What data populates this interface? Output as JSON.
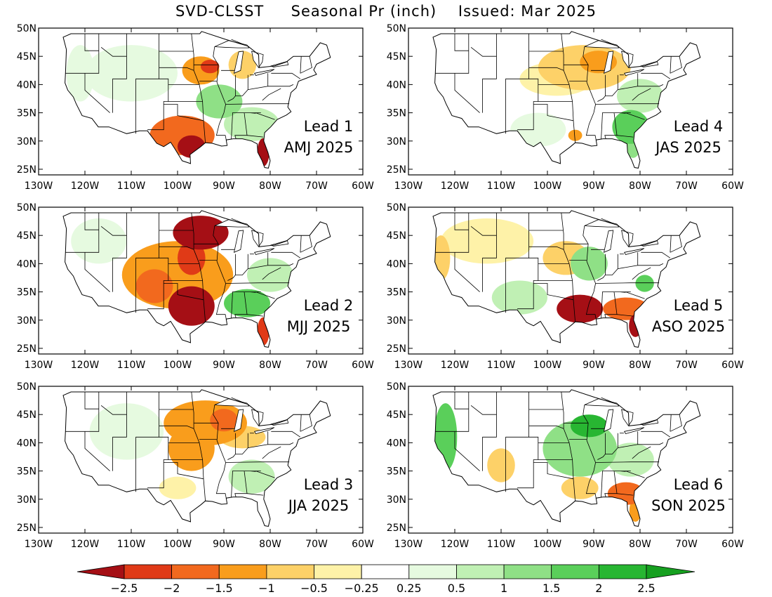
{
  "title": {
    "model": "SVD-CLSST",
    "variable": "Seasonal Pr (inch)",
    "issued": "Issued: Mar 2025"
  },
  "axes": {
    "lat_labels": [
      "50N",
      "45N",
      "40N",
      "35N",
      "30N",
      "25N"
    ],
    "lon_labels": [
      "130W",
      "120W",
      "110W",
      "100W",
      "90W",
      "80W",
      "70W",
      "60W"
    ],
    "lat_range": [
      24,
      50
    ],
    "lon_range": [
      -130,
      -60
    ]
  },
  "panels": [
    {
      "lead": "Lead 1",
      "season": "AMJ 2025",
      "blobs": [
        {
          "lon": -95,
          "lat": 42.5,
          "rx": 4,
          "ry": 2.5,
          "v": -1.2
        },
        {
          "lon": -93,
          "lat": 43.2,
          "rx": 2,
          "ry": 1.2,
          "v": -2.3
        },
        {
          "lon": -86,
          "lat": 43.5,
          "rx": 3,
          "ry": 2.5,
          "v": -1
        },
        {
          "lon": -99,
          "lat": 31,
          "rx": 7,
          "ry": 3.5,
          "v": -1.6
        },
        {
          "lon": -97,
          "lat": 29,
          "rx": 3,
          "ry": 2,
          "v": -2.6
        },
        {
          "lon": -81.5,
          "lat": 28,
          "rx": 1.3,
          "ry": 2.5,
          "v": -2.6
        },
        {
          "lon": -91,
          "lat": 37,
          "rx": 5,
          "ry": 3,
          "v": 1.2
        },
        {
          "lon": -84,
          "lat": 33,
          "rx": 6,
          "ry": 3,
          "v": 0.8
        },
        {
          "lon": -110,
          "lat": 42,
          "rx": 10,
          "ry": 5,
          "v": 0.4
        },
        {
          "lon": -121,
          "lat": 42,
          "rx": 3,
          "ry": 5,
          "v": 0.3
        }
      ]
    },
    {
      "lead": "Lead 4",
      "season": "JAS 2025",
      "blobs": [
        {
          "lon": -92,
          "lat": 43,
          "rx": 10,
          "ry": 4,
          "v": -0.8
        },
        {
          "lon": -89,
          "lat": 44,
          "rx": 4,
          "ry": 2,
          "v": -1.3
        },
        {
          "lon": -98,
          "lat": 41,
          "rx": 8,
          "ry": 3,
          "v": -0.4
        },
        {
          "lon": -82,
          "lat": 32.5,
          "rx": 4,
          "ry": 3,
          "v": 1.8
        },
        {
          "lon": -81.5,
          "lat": 29,
          "rx": 1.5,
          "ry": 2,
          "v": 1
        },
        {
          "lon": -80,
          "lat": 38,
          "rx": 5,
          "ry": 3,
          "v": 0.5
        },
        {
          "lon": -102,
          "lat": 32,
          "rx": 6,
          "ry": 3,
          "v": 0.3
        },
        {
          "lon": -94,
          "lat": 31,
          "rx": 1.5,
          "ry": 1,
          "v": -1.2
        }
      ]
    },
    {
      "lead": "Lead 2",
      "season": "MJJ 2025",
      "blobs": [
        {
          "lon": -95,
          "lat": 45.5,
          "rx": 6,
          "ry": 3,
          "v": -2.6
        },
        {
          "lon": -100,
          "lat": 38,
          "rx": 12,
          "ry": 6,
          "v": -1.2
        },
        {
          "lon": -97,
          "lat": 32.5,
          "rx": 5,
          "ry": 3.5,
          "v": -2.6
        },
        {
          "lon": -105,
          "lat": 36,
          "rx": 4,
          "ry": 3,
          "v": -2
        },
        {
          "lon": -97,
          "lat": 41,
          "rx": 3,
          "ry": 3,
          "v": -2.4
        },
        {
          "lon": -81.5,
          "lat": 28,
          "rx": 1.3,
          "ry": 2.5,
          "v": -2.4
        },
        {
          "lon": -85,
          "lat": 33,
          "rx": 5,
          "ry": 2.5,
          "v": 1.6
        },
        {
          "lon": -80,
          "lat": 38,
          "rx": 5,
          "ry": 3,
          "v": 0.7
        },
        {
          "lon": -117,
          "lat": 44,
          "rx": 6,
          "ry": 4,
          "v": 0.4
        }
      ]
    },
    {
      "lead": "Lead 5",
      "season": "ASO 2025",
      "blobs": [
        {
          "lon": -93,
          "lat": 32,
          "rx": 5,
          "ry": 2.5,
          "v": -2.6
        },
        {
          "lon": -83,
          "lat": 32,
          "rx": 5,
          "ry": 2,
          "v": -1.8
        },
        {
          "lon": -81,
          "lat": 29,
          "rx": 1.4,
          "ry": 2,
          "v": -2.6
        },
        {
          "lon": -96,
          "lat": 41,
          "rx": 5,
          "ry": 3,
          "v": -1
        },
        {
          "lon": -113,
          "lat": 44,
          "rx": 10,
          "ry": 4,
          "v": -0.5
        },
        {
          "lon": -123,
          "lat": 41,
          "rx": 2,
          "ry": 4,
          "v": -0.6
        },
        {
          "lon": -91,
          "lat": 40,
          "rx": 4,
          "ry": 3,
          "v": 1
        },
        {
          "lon": -79,
          "lat": 36.5,
          "rx": 2,
          "ry": 1.5,
          "v": 1.5
        },
        {
          "lon": -106,
          "lat": 34,
          "rx": 6,
          "ry": 3,
          "v": 0.7
        }
      ]
    },
    {
      "lead": "Lead 3",
      "season": "JJA 2025",
      "blobs": [
        {
          "lon": -94,
          "lat": 43.5,
          "rx": 9,
          "ry": 4,
          "v": -1.2
        },
        {
          "lon": -90,
          "lat": 44,
          "rx": 3,
          "ry": 2,
          "v": -2
        },
        {
          "lon": -97,
          "lat": 39,
          "rx": 5,
          "ry": 4,
          "v": -1.1
        },
        {
          "lon": -86,
          "lat": 41,
          "rx": 5,
          "ry": 2,
          "v": -0.8
        },
        {
          "lon": -84,
          "lat": 34,
          "rx": 5,
          "ry": 3,
          "v": 0.8
        },
        {
          "lon": -111,
          "lat": 42,
          "rx": 8,
          "ry": 5,
          "v": 0.3
        },
        {
          "lon": -100,
          "lat": 32,
          "rx": 4,
          "ry": 2,
          "v": -0.4
        }
      ]
    },
    {
      "lead": "Lead 6",
      "season": "SON 2025",
      "blobs": [
        {
          "lon": -122,
          "lat": 41,
          "rx": 2.5,
          "ry": 6,
          "v": 1.8
        },
        {
          "lon": -93,
          "lat": 39,
          "rx": 8,
          "ry": 5,
          "v": 1.4
        },
        {
          "lon": -91,
          "lat": 43,
          "rx": 4,
          "ry": 2,
          "v": 2
        },
        {
          "lon": -82,
          "lat": 37,
          "rx": 5,
          "ry": 3,
          "v": 0.8
        },
        {
          "lon": -83,
          "lat": 31,
          "rx": 4,
          "ry": 2,
          "v": -1.6
        },
        {
          "lon": -81,
          "lat": 28,
          "rx": 1.3,
          "ry": 2,
          "v": -1.4
        },
        {
          "lon": -93,
          "lat": 32,
          "rx": 4,
          "ry": 2,
          "v": -0.9
        },
        {
          "lon": -110,
          "lat": 36,
          "rx": 3,
          "ry": 3,
          "v": -0.6
        }
      ]
    }
  ],
  "colorbar": {
    "labels": [
      "−2.5",
      "−2",
      "−1.5",
      "−1",
      "−0.5",
      "−0.25",
      "0.25",
      "0.5",
      "1",
      "1.5",
      "2",
      "2.5"
    ],
    "colors": [
      "#a50f15",
      "#e03a17",
      "#f2691e",
      "#f99d1c",
      "#fdd168",
      "#fef2a8",
      "#ffffff",
      "#e6fae0",
      "#c0f0b4",
      "#8fe086",
      "#5acf5a",
      "#28b632",
      "#16a020"
    ],
    "thresholds": [
      -2.5,
      -2,
      -1.5,
      -1,
      -0.5,
      -0.25,
      0.25,
      0.5,
      1,
      1.5,
      2,
      2.5
    ]
  }
}
